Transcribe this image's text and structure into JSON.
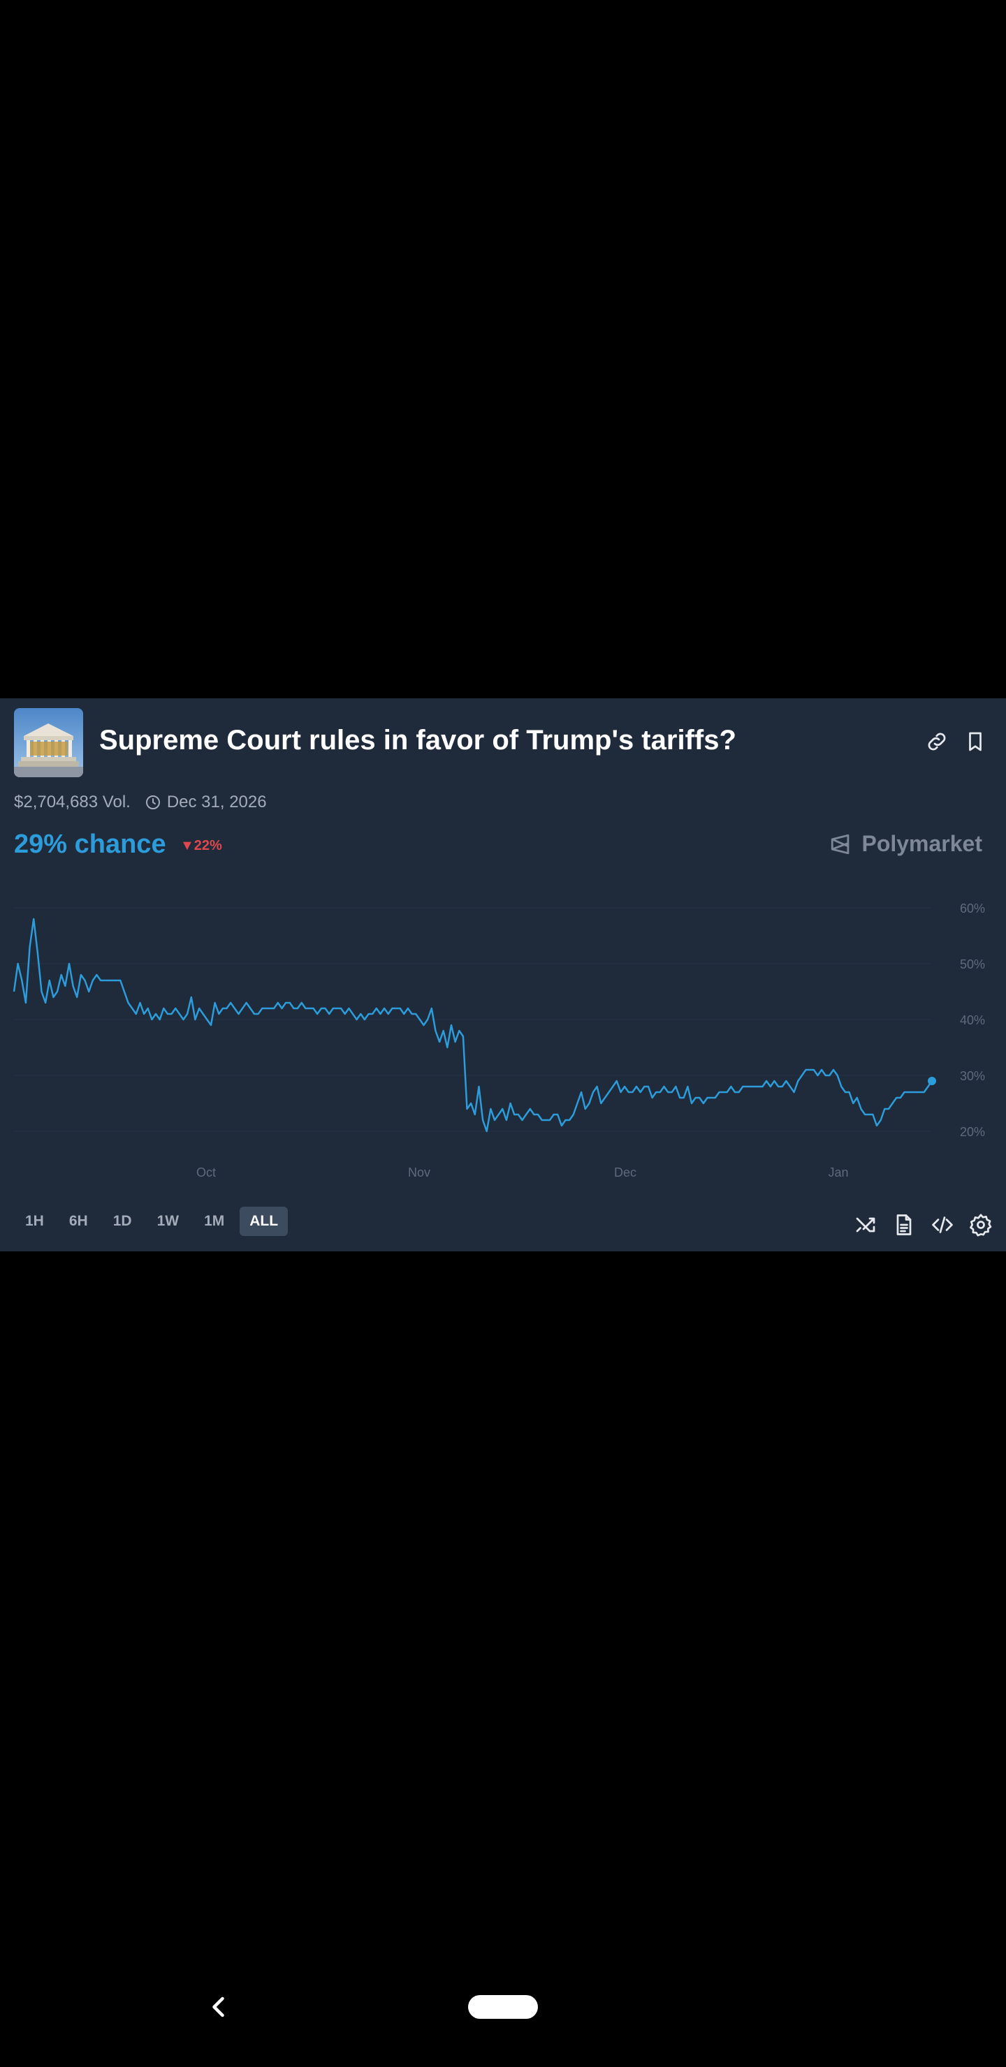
{
  "market": {
    "title": "Supreme Court rules in favor of Trump's tariffs?",
    "volume": "$2,704,683 Vol.",
    "end_date": "Dec 31, 2026",
    "chance": "29% chance",
    "change": "22%",
    "change_direction": "down",
    "brand": "Polymarket",
    "thumbnail_icon": "supreme-court-building-image"
  },
  "header_icons": [
    "link-icon",
    "bookmark-icon"
  ],
  "ranges": [
    {
      "label": "1H",
      "active": false
    },
    {
      "label": "6H",
      "active": false
    },
    {
      "label": "1D",
      "active": false
    },
    {
      "label": "1W",
      "active": false
    },
    {
      "label": "1M",
      "active": false
    },
    {
      "label": "ALL",
      "active": true
    }
  ],
  "tools": [
    "shuffle-icon",
    "document-icon",
    "code-icon",
    "settings-icon"
  ],
  "colors": {
    "card_bg": "#1f2a3a",
    "accent": "#2d9cdb",
    "negative": "#e0484e",
    "muted": "#a4acb9"
  },
  "chart_data": {
    "type": "line",
    "x_tick_labels": [
      "Oct",
      "Nov",
      "Dec",
      "Jan"
    ],
    "y_tick_labels": [
      "60%",
      "50%",
      "40%",
      "30%",
      "20%"
    ],
    "ylim": [
      15,
      62
    ],
    "grid": true,
    "series": [
      {
        "values": [
          45,
          50,
          47,
          43,
          53,
          58,
          52,
          45,
          43,
          47,
          44,
          45,
          48,
          46,
          50,
          46,
          44,
          48,
          47,
          45,
          47,
          48,
          47,
          47,
          47,
          47,
          47,
          47,
          45,
          43,
          42,
          41,
          43,
          41,
          42,
          40,
          41,
          40,
          42,
          41,
          41,
          42,
          41,
          40,
          41,
          44,
          40,
          42,
          41,
          40,
          39,
          43,
          41,
          42,
          42,
          43,
          42,
          41,
          42,
          43,
          42,
          41,
          41,
          42,
          42,
          42,
          42,
          43,
          42,
          43,
          43,
          42,
          42,
          43,
          42,
          42,
          42,
          41,
          42,
          42,
          41,
          42,
          42,
          42,
          41,
          42,
          41,
          40,
          41,
          40,
          41,
          41,
          42,
          41,
          42,
          41,
          42,
          42,
          42,
          41,
          42,
          41,
          41,
          40,
          39,
          40,
          42,
          38,
          36,
          38,
          35,
          39,
          36,
          38,
          37,
          24,
          25,
          23,
          28,
          22,
          20,
          24,
          22,
          23,
          24,
          22,
          25,
          23,
          23,
          22,
          23,
          24,
          23,
          23,
          22,
          22,
          22,
          23,
          23,
          21,
          22,
          22,
          23,
          25,
          27,
          24,
          25,
          27,
          28,
          25,
          26,
          27,
          28,
          29,
          27,
          28,
          27,
          27,
          28,
          27,
          28,
          28,
          26,
          27,
          27,
          28,
          27,
          27,
          28,
          26,
          26,
          28,
          25,
          26,
          26,
          25,
          26,
          26,
          26,
          27,
          27,
          27,
          28,
          27,
          27,
          28,
          28,
          28,
          28,
          28,
          28,
          29,
          28,
          29,
          28,
          28,
          29,
          28,
          27,
          29,
          30,
          31,
          31,
          31,
          30,
          31,
          30,
          30,
          31,
          30,
          28,
          27,
          27,
          25,
          26,
          24,
          23,
          23,
          23,
          21,
          22,
          24,
          24,
          25,
          26,
          26,
          27,
          27,
          27,
          27,
          27,
          27,
          28,
          29
        ]
      }
    ]
  }
}
